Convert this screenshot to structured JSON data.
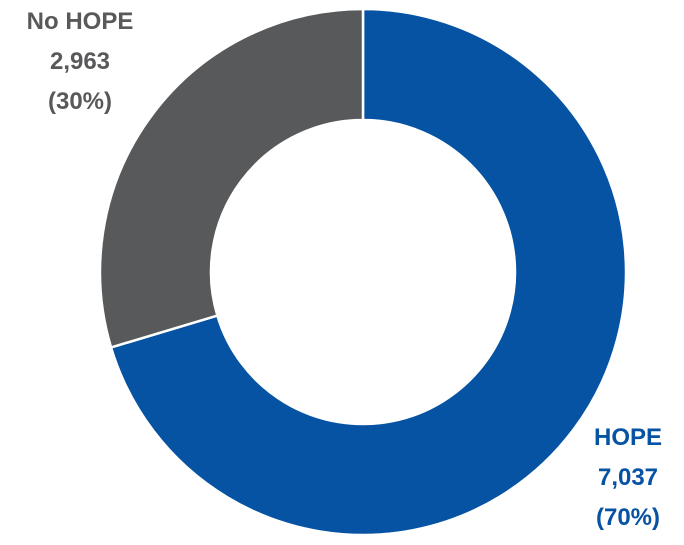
{
  "chart_data": {
    "type": "pie",
    "variant": "donut",
    "categories": [
      "HOPE",
      "No HOPE"
    ],
    "values": [
      7037,
      2963
    ],
    "percent_labels": [
      "(70%)",
      "(30%)"
    ],
    "value_labels": [
      "7,037",
      "2,963"
    ],
    "colors": [
      "#0652a3",
      "#58595b"
    ],
    "title": "",
    "legend": "none"
  }
}
